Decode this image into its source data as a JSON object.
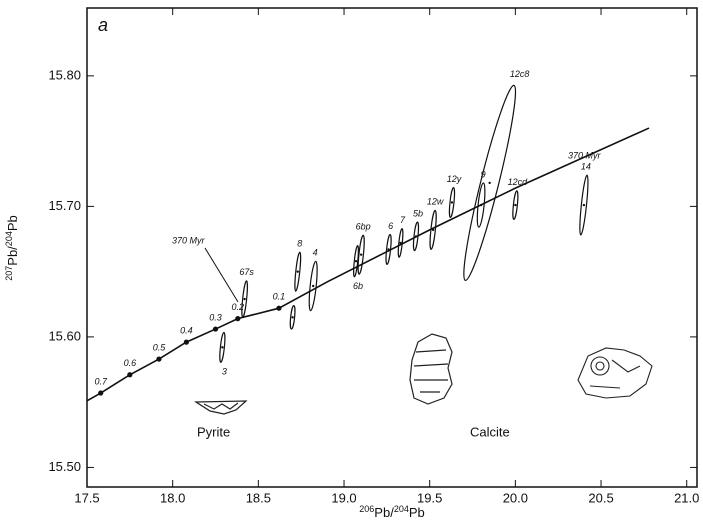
{
  "chart_data": {
    "type": "scatter",
    "panel_label": "a",
    "xlabel": {
      "mass1": "206",
      "el1": "Pb",
      "mass2": "204",
      "el2": "Pb"
    },
    "ylabel": {
      "mass1": "207",
      "el1": "Pb",
      "mass2": "204",
      "el2": "Pb"
    },
    "xlim": [
      17.5,
      21.06
    ],
    "ylim": [
      15.485,
      15.852
    ],
    "xticks": [
      17.5,
      {
        "value": 18,
        "label": "18.0"
      },
      18.5,
      {
        "value": 19,
        "label": "19.0"
      },
      19.5,
      {
        "value": 20,
        "label": "20.0"
      },
      20.5,
      {
        "value": 21,
        "label": "21.0"
      }
    ],
    "yticks": [
      {
        "value": 15.5,
        "label": "15.50"
      },
      {
        "value": 15.6,
        "label": "15.60"
      },
      {
        "value": 15.7,
        "label": "15.70"
      },
      {
        "value": 15.8,
        "label": "15.80"
      }
    ],
    "growth_curve": {
      "x": [
        17.5,
        17.58,
        17.75,
        17.92,
        18.08,
        18.25,
        18.38,
        18.62,
        18.9,
        19.5,
        20.0,
        20.78
      ],
      "y": [
        15.551,
        15.557,
        15.571,
        15.583,
        15.596,
        15.606,
        15.614,
        15.622,
        15.642,
        15.682,
        15.714,
        15.76
      ]
    },
    "model_points": {
      "labels": [
        "0.7",
        "0.6",
        "0.5",
        "0.4",
        "0.3",
        "0.2",
        "0.1"
      ],
      "x": [
        17.58,
        17.75,
        17.92,
        18.08,
        18.25,
        18.38,
        18.62
      ],
      "y": [
        15.557,
        15.571,
        15.583,
        15.596,
        15.606,
        15.614,
        15.622
      ]
    },
    "ellipses": [
      {
        "label": "3",
        "x": 18.29,
        "y": 15.592,
        "x_err": 0.023,
        "y_err": 0.0115,
        "angle": 6
      },
      {
        "label": "67s",
        "x": 18.42,
        "y": 15.629,
        "x_err": 0.023,
        "y_err": 0.014,
        "angle": 6
      },
      {
        "x": 18.7,
        "y": 15.615,
        "x_err": 0.023,
        "y_err": 0.009,
        "angle": 6
      },
      {
        "label": "8",
        "x": 18.73,
        "y": 15.65,
        "x_err": 0.023,
        "y_err": 0.015,
        "angle": 6
      },
      {
        "label": "4",
        "x": 18.82,
        "y": 15.639,
        "x_err": 0.035,
        "y_err": 0.019,
        "angle": 6
      },
      {
        "label": "6bp",
        "x": 19.1,
        "y": 15.663,
        "x_err": 0.026,
        "y_err": 0.015,
        "angle": 6
      },
      {
        "label": "6b",
        "x": 19.07,
        "y": 15.658,
        "x_err": 0.02,
        "y_err": 0.012,
        "angle": 6
      },
      {
        "label": "6",
        "x": 19.26,
        "y": 15.667,
        "x_err": 0.023,
        "y_err": 0.0115,
        "angle": 6
      },
      {
        "label": "7",
        "x": 19.33,
        "y": 15.672,
        "x_err": 0.02,
        "y_err": 0.011,
        "angle": 6
      },
      {
        "label": "5b",
        "x": 19.42,
        "y": 15.677,
        "x_err": 0.023,
        "y_err": 0.011,
        "angle": 6
      },
      {
        "label": "12w",
        "x": 19.52,
        "y": 15.682,
        "x_err": 0.026,
        "y_err": 0.015,
        "angle": 6
      },
      {
        "label": "12y",
        "x": 19.63,
        "y": 15.703,
        "x_err": 0.023,
        "y_err": 0.0115,
        "angle": 6
      },
      {
        "label": "9",
        "x": 19.8,
        "y": 15.701,
        "x_err": 0.035,
        "y_err": 0.017,
        "angle": 6
      },
      {
        "label": "12c8",
        "x": 19.85,
        "y": 15.718,
        "x_err": 0.105,
        "y_err": 0.077,
        "angle": 14
      },
      {
        "label": "12cd",
        "x": 20.0,
        "y": 15.701,
        "x_err": 0.023,
        "y_err": 0.011,
        "angle": 6
      },
      {
        "label": "14",
        "x": 20.4,
        "y": 15.701,
        "x_err": 0.03,
        "y_err": 0.023,
        "angle": 6
      }
    ],
    "annotations": {
      "left_age": "370 Myr",
      "right_age": "370 Myr",
      "pyrite": "Pyrite",
      "calcite": "Calcite"
    }
  }
}
